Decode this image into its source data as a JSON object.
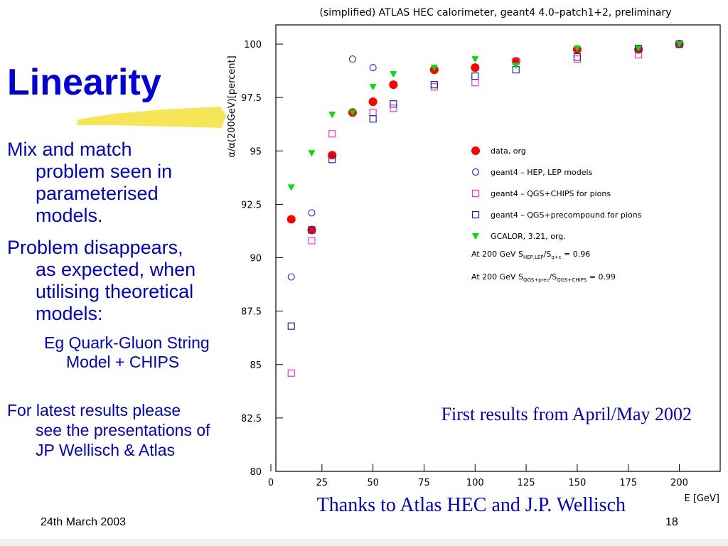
{
  "slide": {
    "title": "Linearity",
    "bullets": [
      [
        "Mix and match",
        "problem seen in",
        "parameterised",
        "models."
      ],
      [
        "Problem disappears,",
        "as expected, when",
        "utilising theoretical",
        "models:"
      ]
    ],
    "sub_bullet": [
      "Eg Quark-Gluon String",
      "Model + CHIPS"
    ],
    "note": [
      "For latest results please",
      "see the presentations of",
      "JP Wellisch & Atlas"
    ],
    "first_results": "First results from April/May 2002",
    "thanks": "Thanks to Atlas HEC and J.P. Wellisch",
    "date": "24th March 2003",
    "page": "18"
  },
  "chart_data": {
    "type": "scatter",
    "title": "(simplified) ATLAS HEC calorimeter, geant4 4.0–patch1+2, preliminary",
    "y_label": "α/α(200GeV)[percent]",
    "x_label": "E [GeV]",
    "x": [
      10,
      20,
      30,
      40,
      50,
      60,
      80,
      100,
      120,
      150,
      180,
      200
    ],
    "series": [
      {
        "name": "data, org",
        "color": "#ff0000",
        "marker": "circle",
        "values": [
          91.8,
          91.3,
          94.8,
          96.8,
          97.3,
          98.1,
          98.8,
          98.9,
          99.2,
          99.75,
          99.75,
          100
        ]
      },
      {
        "name": "geant4 – HEP, LEP models",
        "color": "#3333cc",
        "marker": "open-circle",
        "values": [
          89.1,
          92.1,
          null,
          99.3,
          98.9,
          null,
          null,
          null,
          null,
          null,
          null,
          null
        ]
      },
      {
        "name": "geant4 – QGS+CHIPS for pions",
        "color": "#ff33cc",
        "marker": "open-square",
        "values": [
          84.6,
          90.8,
          95.8,
          null,
          96.8,
          97.0,
          98.0,
          98.2,
          99.2,
          99.3,
          99.5,
          100
        ]
      },
      {
        "name": "geant4 – QGS+precompound for pions",
        "color": "#2222bb",
        "marker": "open-square",
        "values": [
          86.8,
          91.3,
          94.6,
          null,
          96.5,
          97.2,
          98.1,
          98.5,
          98.8,
          99.4,
          99.8,
          100
        ]
      },
      {
        "name": "GCALOR, 3.21, org.",
        "color": "#00dd00",
        "marker": "triangle",
        "values": [
          93.3,
          94.9,
          96.7,
          96.8,
          98.0,
          98.6,
          98.9,
          99.3,
          99.0,
          99.8,
          99.8,
          100
        ]
      }
    ],
    "annotations": [
      {
        "text": "At 200 GeV S",
        "sub1": "HEP,LEP",
        "mid": "/S",
        "sub2": "q+c",
        "end": " = 0.96"
      },
      {
        "text": "At 200 GeV S",
        "sub1": "QGS+prec",
        "mid": "/S",
        "sub2": "QGS+CHIPS",
        "end": " = 0.99"
      }
    ],
    "xlim": [
      0,
      220
    ],
    "ylim": [
      80,
      101
    ],
    "xticks": [
      0,
      25,
      50,
      75,
      100,
      125,
      150,
      175,
      200
    ],
    "yticks": [
      80,
      82.5,
      85,
      87.5,
      90,
      92.5,
      95,
      97.5,
      100
    ]
  }
}
